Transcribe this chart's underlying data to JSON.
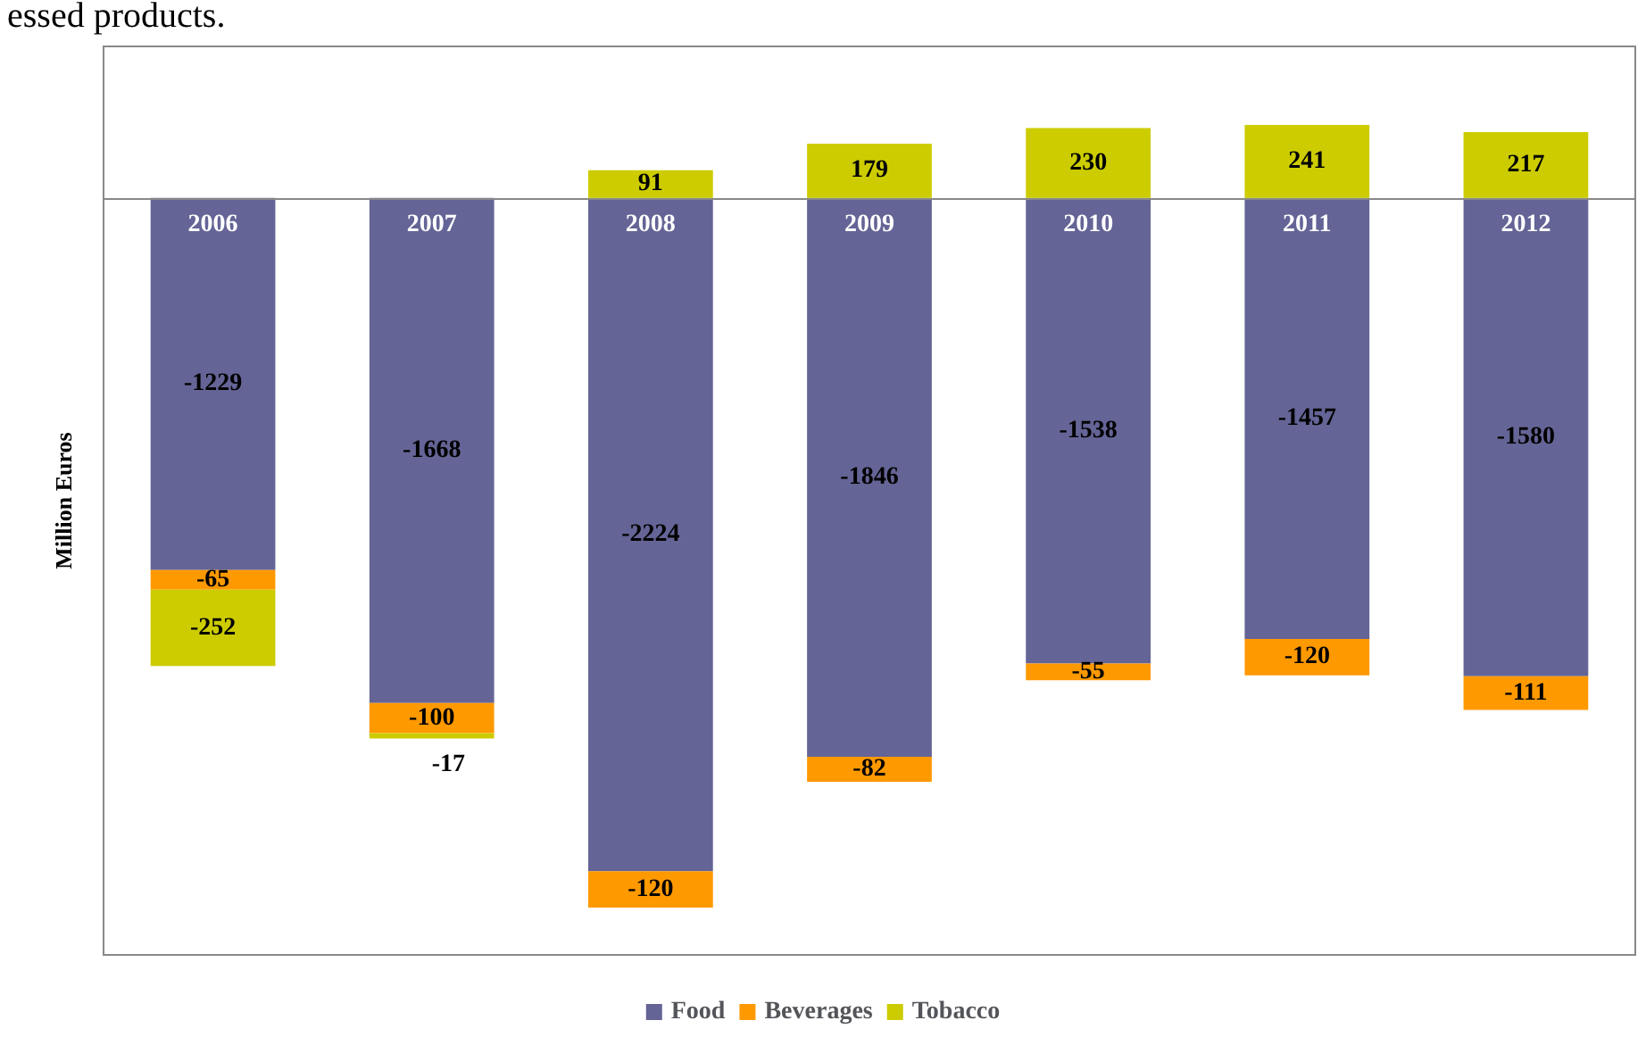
{
  "chart_data": {
    "type": "bar",
    "stacked": true,
    "ylabel": "Million Euros",
    "annotations": [
      "essed products."
    ],
    "categories": [
      "2006",
      "2007",
      "2008",
      "2009",
      "2010",
      "2011",
      "2012"
    ],
    "series": [
      {
        "name": "Food",
        "color": "#646496",
        "values": [
          -1229,
          -1668,
          -2224,
          -1846,
          -1538,
          -1457,
          -1580
        ]
      },
      {
        "name": "Beverages",
        "color": "#ff9900",
        "values": [
          -65,
          -100,
          -120,
          -82,
          -55,
          -120,
          -111
        ]
      },
      {
        "name": "Tobacco",
        "color": "#cccc00",
        "values": [
          -252,
          -17,
          91,
          179,
          230,
          241,
          217
        ]
      }
    ],
    "data_labels": true,
    "legend": "bottom",
    "grid": false
  }
}
